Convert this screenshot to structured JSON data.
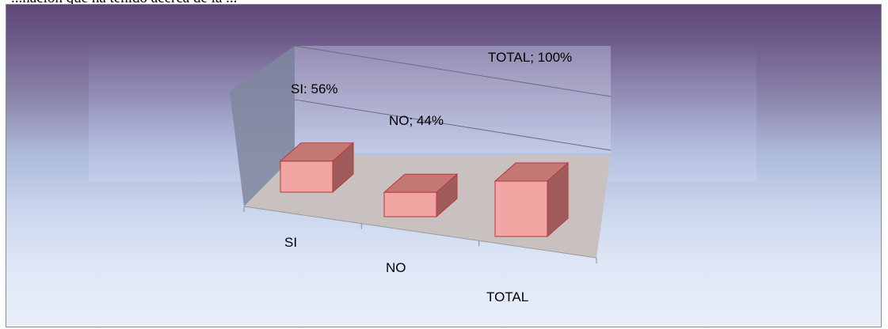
{
  "document": {
    "partial_text": "...nación que ha tenido acerca de la ..."
  },
  "chart_data": {
    "type": "bar",
    "style": "3d-column",
    "categories": [
      "SI",
      "NO",
      "TOTAL"
    ],
    "values": [
      56,
      44,
      100
    ],
    "data_labels": [
      "SI: 56%",
      "NO; 44%",
      "TOTAL; 100%"
    ],
    "ylim": [
      0,
      100
    ],
    "grid": true,
    "legend": "none",
    "title": "",
    "xlabel": "",
    "ylabel": ""
  },
  "colors": {
    "bar_front": "#f2a6a3",
    "bar_top": "#c47876",
    "bar_side": "#a05c5a",
    "bar_edge": "#b43a3a",
    "floor": "#c9c1c0",
    "back_wall": "#d6dcf0",
    "side_wall": "#7f879e"
  }
}
